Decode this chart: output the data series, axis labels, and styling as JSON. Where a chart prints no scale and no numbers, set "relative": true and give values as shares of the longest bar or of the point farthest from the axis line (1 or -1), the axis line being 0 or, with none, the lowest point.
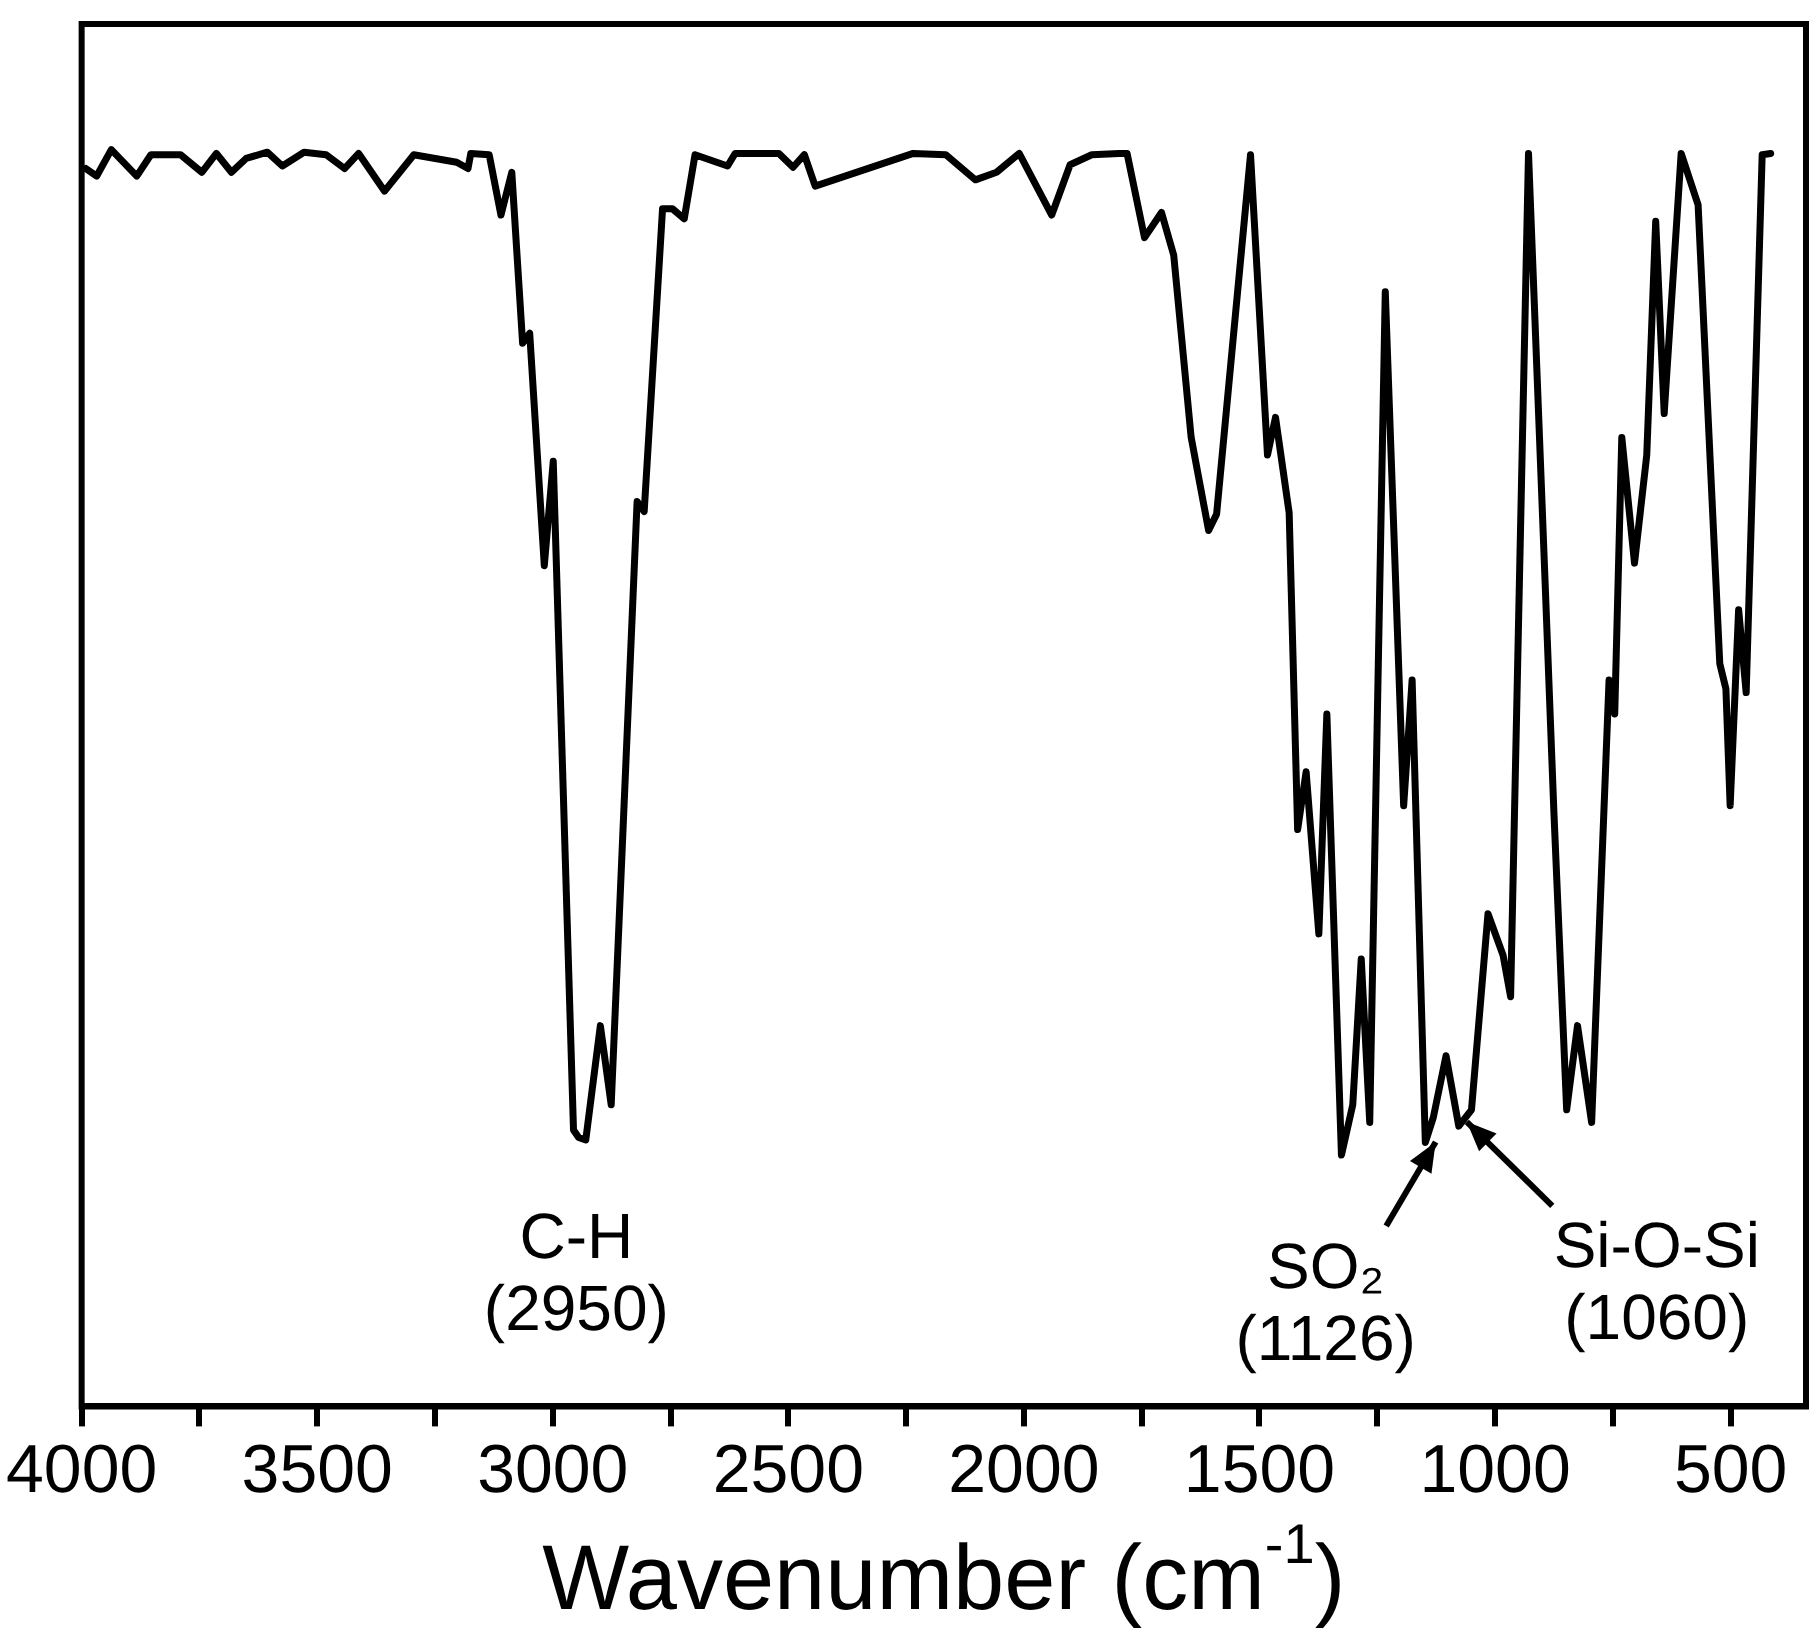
{
  "chart_data": {
    "type": "line",
    "xlabel": "Wavenumber (cm$^{-1}$)",
    "relative": true,
    "grid": false,
    "legend": false,
    "marker": "none",
    "line_style": "solid",
    "xlim": [
      4000,
      340
    ],
    "xticks": [
      4000,
      {
        "value": 3750,
        "label": null
      },
      3500,
      {
        "value": 3250,
        "label": null
      },
      3000,
      {
        "value": 2750,
        "label": null
      },
      2500,
      {
        "value": 2250,
        "label": null
      },
      2000,
      {
        "value": 1750,
        "label": null
      },
      1500,
      {
        "value": 1250,
        "label": null
      },
      1000,
      {
        "value": 750,
        "label": null
      },
      500
    ],
    "series": [
      {
        "color": "#000000",
        "x": [
          3991,
          3968,
          3937,
          3883,
          3853,
          3790,
          3745,
          3714,
          3682,
          3651,
          3606,
          3574,
          3528,
          3481,
          3442,
          3412,
          3357,
          3295,
          3204,
          3180,
          3174,
          3135,
          3110,
          3087,
          3064,
          3049,
          3018,
          2999,
          2956,
          2945,
          2930,
          2899,
          2876,
          2821,
          2806,
          2767,
          2746,
          2721,
          2698,
          2629,
          2613,
          2520,
          2490,
          2466,
          2443,
          2235,
          2166,
          2103,
          2058,
          2010,
          1941,
          1902,
          1856,
          1798,
          1781,
          1744,
          1708,
          1682,
          1645,
          1608,
          1591,
          1519,
          1483,
          1466,
          1437,
          1419,
          1401,
          1374,
          1357,
          1326,
          1302,
          1284,
          1266,
          1233,
          1194,
          1176,
          1148,
          1131,
          1104,
          1077,
          1050,
          1015,
          983,
          967,
          929,
          894,
          875,
          848,
          825,
          795,
          758,
          746,
          731,
          704,
          678,
          659,
          641,
          605,
          569,
          523,
          510,
          501,
          483,
          467,
          433,
          415
        ],
        "values": [
          0.985,
          0.979,
          1,
          0.979,
          0.996,
          0.996,
          0.982,
          0.997,
          0.982,
          0.993,
          0.998,
          0.987,
          0.998,
          0.996,
          0.985,
          0.997,
          0.967,
          0.996,
          0.99,
          0.985,
          0.997,
          0.996,
          0.948,
          0.982,
          0.846,
          0.854,
          0.669,
          0.752,
          0.22,
          0.214,
          0.212,
          0.303,
          0.24,
          0.72,
          0.712,
          0.953,
          0.953,
          0.945,
          0.996,
          0.987,
          0.997,
          0.997,
          0.986,
          0.996,
          0.971,
          0.997,
          0.996,
          0.976,
          0.982,
          0.997,
          0.948,
          0.988,
          0.996,
          0.997,
          0.997,
          0.93,
          0.95,
          0.916,
          0.771,
          0.697,
          0.71,
          0.996,
          0.757,
          0.787,
          0.711,
          0.459,
          0.505,
          0.376,
          0.551,
          0.2,
          0.24,
          0.356,
          0.226,
          0.887,
          0.478,
          0.578,
          0.21,
          0.23,
          0.279,
          0.223,
          0.236,
          0.392,
          0.359,
          0.326,
          0.997,
          0.658,
          0.472,
          0.236,
          0.303,
          0.226,
          0.578,
          0.551,
          0.771,
          0.671,
          0.757,
          0.943,
          0.79,
          0.997,
          0.956,
          0.591,
          0.571,
          0.478,
          0.634,
          0.568,
          0.996,
          0.997
        ]
      }
    ],
    "annotations": [
      {
        "text": "C-H\n(2950)",
        "x": 2950,
        "y": 0.22
      },
      {
        "text": "SO₂\n(1126)",
        "x": 1126,
        "y": 0.22
      },
      {
        "text": "Si-O-Si\n(1060)",
        "x": 1060,
        "y": 0.236
      }
    ]
  }
}
